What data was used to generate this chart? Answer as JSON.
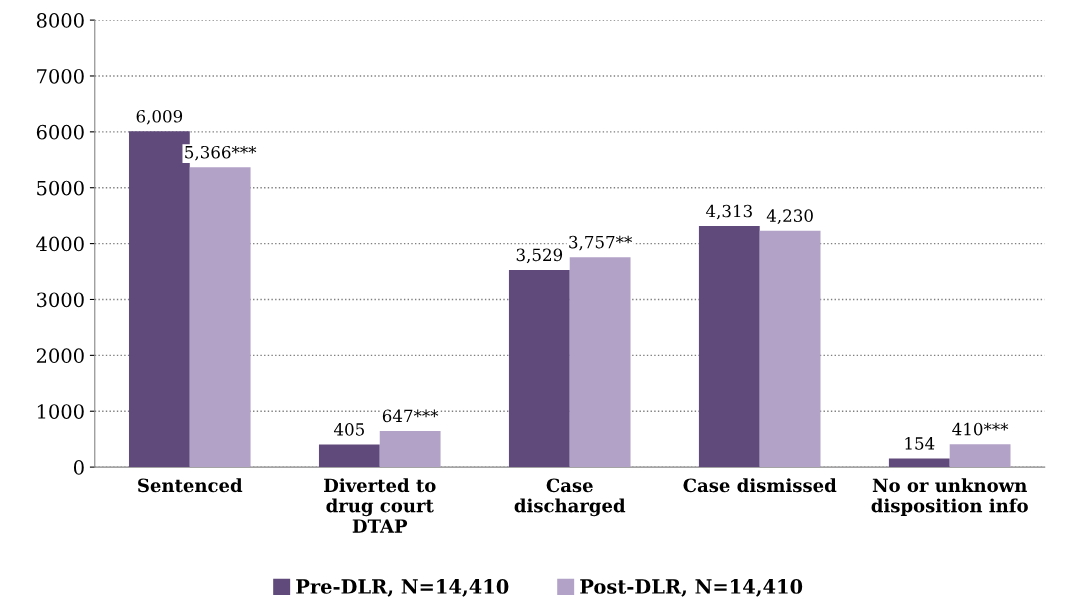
{
  "chart_data": {
    "type": "bar",
    "categories": [
      "Sentenced",
      "Diverted to\ndrug court\nDTAP",
      "Case\ndischarged",
      "Case dismissed",
      "No or unknown\ndisposition info"
    ],
    "series": [
      {
        "name": "Pre-DLR, N=14,410",
        "color": "#604a7b",
        "values": [
          6009,
          405,
          3529,
          4313,
          154
        ],
        "value_labels": [
          "6,009",
          "405",
          "3,529",
          "4,313",
          "154"
        ]
      },
      {
        "name": "Post-DLR, N=14,410",
        "color": "#b3a2c7",
        "values": [
          5366,
          647,
          3757,
          4230,
          410
        ],
        "value_labels": [
          "5,366***",
          "647***",
          "3,757**",
          "4,230",
          "410***"
        ]
      }
    ],
    "ylim": [
      0,
      8000
    ],
    "yticks": [
      0,
      1000,
      2000,
      3000,
      4000,
      5000,
      6000,
      7000,
      8000
    ],
    "grid": "y",
    "legend": "bottom"
  }
}
